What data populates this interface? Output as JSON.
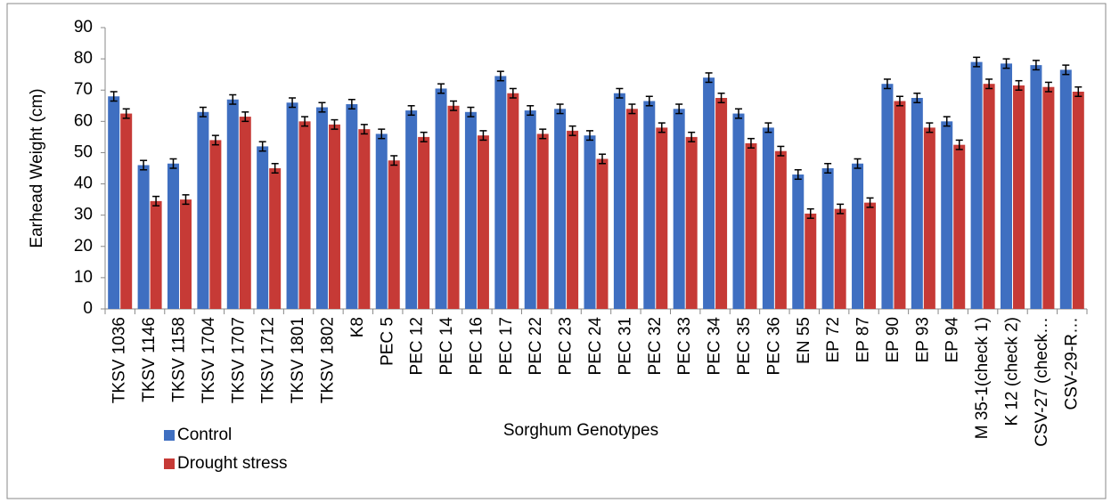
{
  "chart_data": {
    "type": "bar",
    "y_label": "Earhead Weight (cm)",
    "x_label": "Sorghum Genotypes",
    "categories": [
      "TKSV 1036",
      "TKSV 1146",
      "TKSV 1158",
      "TKSV 1704",
      "TKSV 1707",
      "TKSV 1712",
      "TKSV 1801",
      "TKSV 1802",
      "K8",
      "PEC 5",
      "PEC 12",
      "PEC 14",
      "PEC 16",
      "PEC 17",
      "PEC 22",
      "PEC 23",
      "PEC 24",
      "PEC 31",
      "PEC 32",
      "PEC 33",
      "PEC 34",
      "PEC 35",
      "PEC 36",
      "EN 55",
      "EP 72",
      "EP 87",
      "EP 90",
      "EP 93",
      "EP 94",
      "M 35-1(check 1)",
      "K 12 (check 2)",
      "CSV-27 (check…",
      "CSV-29-R…"
    ],
    "series": [
      {
        "name": "Control",
        "color": "#3f6fc1",
        "values": [
          68,
          46,
          46.5,
          63,
          67,
          52,
          66,
          64.5,
          65.5,
          56,
          63.5,
          70.5,
          63,
          74.5,
          63.5,
          64,
          55.5,
          69,
          66.5,
          64,
          74,
          62.5,
          58,
          43,
          45,
          46.5,
          72,
          67.5,
          60,
          79,
          78.5,
          78,
          76.5
        ],
        "errors": [
          1.5,
          1.5,
          1.5,
          1.5,
          1.5,
          1.5,
          1.5,
          1.5,
          1.5,
          1.5,
          1.5,
          1.5,
          1.5,
          1.5,
          1.5,
          1.5,
          1.5,
          1.5,
          1.5,
          1.5,
          1.5,
          1.5,
          1.5,
          1.5,
          1.5,
          1.5,
          1.5,
          1.5,
          1.5,
          1.5,
          1.5,
          1.5,
          1.5
        ]
      },
      {
        "name": "Drought stress",
        "color": "#c63a36",
        "values": [
          62.5,
          34.5,
          35,
          54,
          61.5,
          45,
          60,
          59,
          57.5,
          47.5,
          55,
          65,
          55.5,
          69,
          56,
          57,
          48,
          64,
          58,
          55,
          67.5,
          53,
          50.5,
          30.5,
          32,
          34,
          66.5,
          58,
          52.5,
          72,
          71.5,
          71,
          69.5
        ],
        "errors": [
          1.5,
          1.5,
          1.5,
          1.5,
          1.5,
          1.5,
          1.5,
          1.5,
          1.5,
          1.5,
          1.5,
          1.5,
          1.5,
          1.5,
          1.5,
          1.5,
          1.5,
          1.5,
          1.5,
          1.5,
          1.5,
          1.5,
          1.5,
          1.5,
          1.5,
          1.5,
          1.5,
          1.5,
          1.5,
          1.5,
          1.5,
          1.5,
          1.5
        ]
      }
    ],
    "ylim": [
      0,
      90
    ],
    "yticks": [
      0,
      10,
      20,
      30,
      40,
      50,
      60,
      70,
      80,
      90
    ]
  }
}
